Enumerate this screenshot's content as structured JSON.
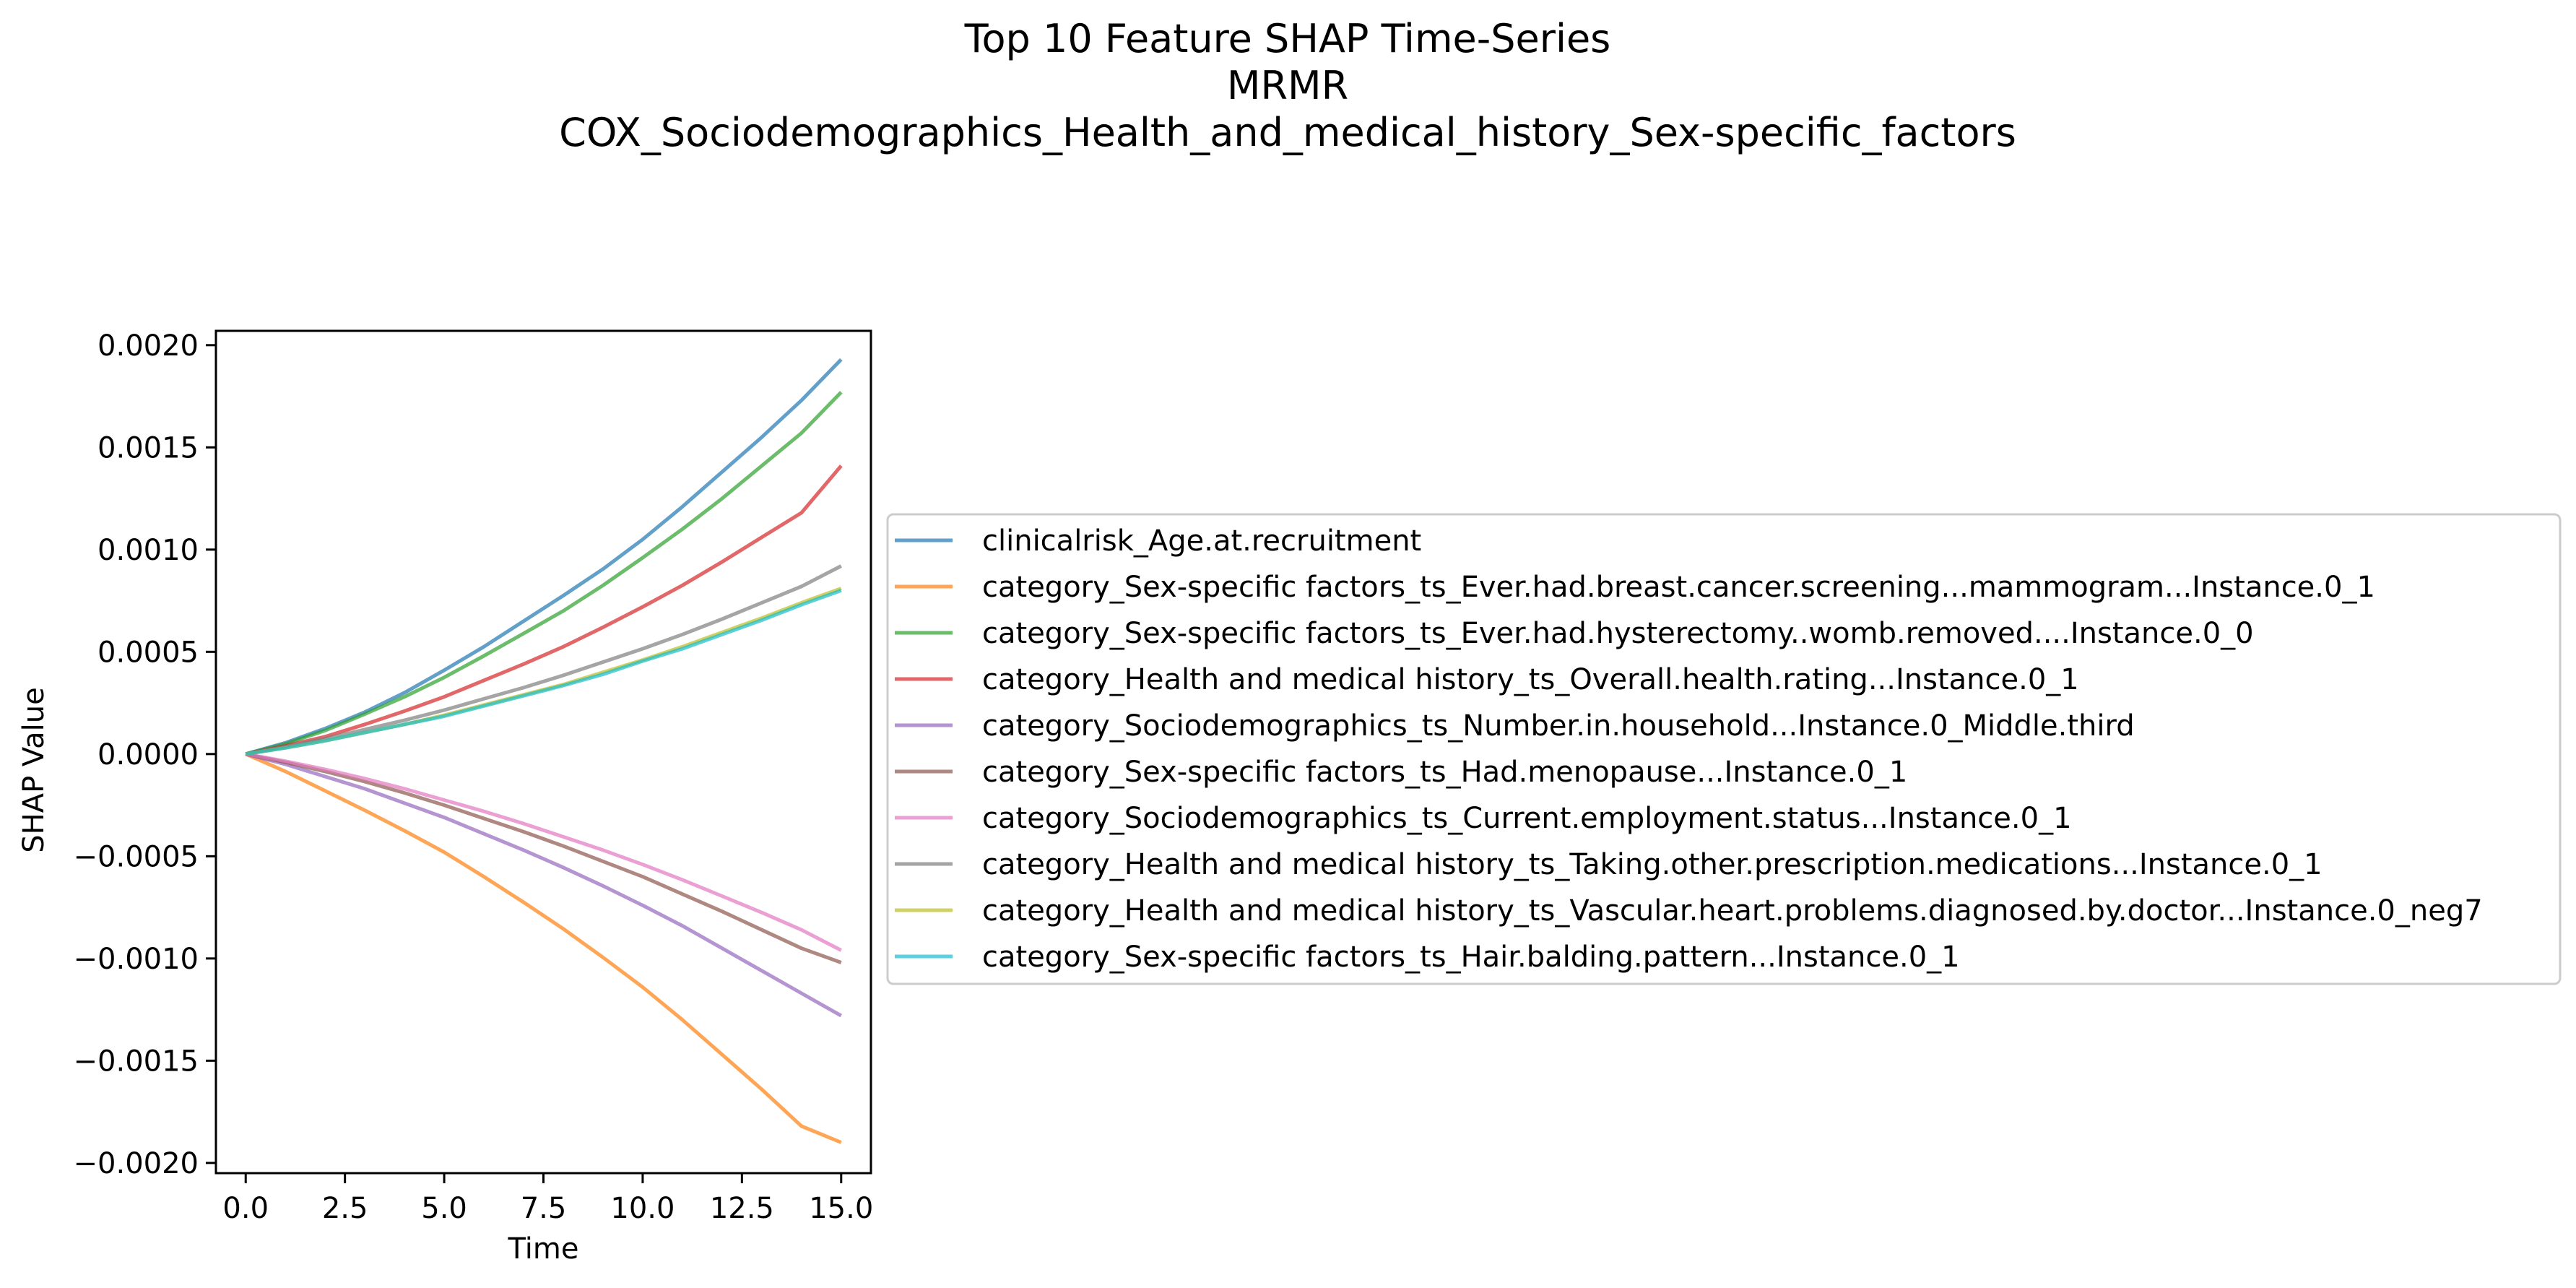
{
  "chart_data": {
    "type": "line",
    "title": [
      "Top 10 Feature SHAP Time-Series",
      "MRMR",
      "COX_Sociodemographics_Health_and_medical_history_Sex-specific_factors"
    ],
    "xlabel": "Time",
    "ylabel": "SHAP Value",
    "xlim": [
      -0.75,
      15.75
    ],
    "ylim": [
      -0.00205,
      0.00207
    ],
    "xticks": [
      0.0,
      2.5,
      5.0,
      7.5,
      10.0,
      12.5,
      15.0
    ],
    "xtick_labels": [
      "0.0",
      "2.5",
      "5.0",
      "7.5",
      "10.0",
      "12.5",
      "15.0"
    ],
    "yticks": [
      0.002,
      0.0015,
      0.001,
      0.0005,
      0.0,
      -0.0005,
      -0.001,
      -0.0015,
      -0.002
    ],
    "ytick_labels": [
      "0.0020",
      "0.0015",
      "0.0010",
      "0.0005",
      "0.0000",
      "−0.0005",
      "−0.0010",
      "−0.0015",
      "−0.0020"
    ],
    "grid": false,
    "legend_position": "right",
    "x": [
      0,
      1,
      2,
      3,
      4,
      5,
      6,
      7,
      8,
      9,
      10,
      11,
      12,
      13,
      14,
      15
    ],
    "series": [
      {
        "name": "clinicalrisk_Age.at.recruitment",
        "color": "#1f77b4",
        "values": [
          0,
          5.5e-05,
          0.000125,
          0.000205,
          0.0003,
          0.00041,
          0.000525,
          0.00065,
          0.000775,
          0.000905,
          0.00105,
          0.00121,
          0.00138,
          0.00155,
          0.00173,
          0.00193
        ]
      },
      {
        "name": "category_Sex-specific factors_ts_Ever.had.breast.cancer.screening...mammogram...Instance.0_1",
        "color": "#ff7f0e",
        "values": [
          0,
          -8.5e-05,
          -0.00018,
          -0.000275,
          -0.000375,
          -0.00048,
          -0.0006,
          -0.000725,
          -0.000855,
          -0.000995,
          -0.00114,
          -0.0013,
          -0.00147,
          -0.00164,
          -0.00182,
          -0.0019
        ]
      },
      {
        "name": "category_Sex-specific factors_ts_Ever.had.hysterectomy..womb.removed....Instance.0_0",
        "color": "#2ca02c",
        "values": [
          0,
          5e-05,
          0.000115,
          0.000195,
          0.00028,
          0.000375,
          0.00048,
          0.00059,
          0.0007,
          0.000825,
          0.00096,
          0.0011,
          0.00125,
          0.00141,
          0.00157,
          0.00177
        ]
      },
      {
        "name": "category_Health and medical history_ts_Overall.health.rating...Instance.0_1",
        "color": "#d62728",
        "values": [
          0,
          4e-05,
          8.5e-05,
          0.000145,
          0.00021,
          0.00028,
          0.00036,
          0.00044,
          0.000525,
          0.00062,
          0.00072,
          0.000825,
          0.00094,
          0.00106,
          0.00118,
          0.00141
        ]
      },
      {
        "name": "category_Sociodemographics_ts_Number.in.household...Instance.0_Middle.third",
        "color": "#9467bd",
        "values": [
          0,
          -5e-05,
          -0.00011,
          -0.00017,
          -0.00024,
          -0.00031,
          -0.00039,
          -0.00047,
          -0.000555,
          -0.000645,
          -0.00074,
          -0.00084,
          -0.00095,
          -0.00106,
          -0.00117,
          -0.00128
        ]
      },
      {
        "name": "category_Sex-specific factors_ts_Had.menopause...Instance.0_1",
        "color": "#8c564b",
        "values": [
          0,
          -4e-05,
          -8.5e-05,
          -0.000135,
          -0.00019,
          -0.00025,
          -0.000315,
          -0.00038,
          -0.00045,
          -0.000525,
          -0.0006,
          -0.000685,
          -0.00077,
          -0.00086,
          -0.00095,
          -0.00102
        ]
      },
      {
        "name": "category_Sociodemographics_ts_Current.employment.status...Instance.0_1",
        "color": "#e377c2",
        "values": [
          0,
          -3.5e-05,
          -7.5e-05,
          -0.00012,
          -0.00017,
          -0.000225,
          -0.00028,
          -0.00034,
          -0.000405,
          -0.00047,
          -0.00054,
          -0.000615,
          -0.000695,
          -0.000775,
          -0.00086,
          -0.00096
        ]
      },
      {
        "name": "category_Health and medical history_ts_Taking.other.prescription.medications...Instance.0_1",
        "color": "#7f7f7f",
        "values": [
          0,
          3.5e-05,
          7.5e-05,
          0.00012,
          0.000165,
          0.000215,
          0.00027,
          0.000325,
          0.000385,
          0.00045,
          0.000515,
          0.000585,
          0.00066,
          0.00074,
          0.00082,
          0.00092
        ]
      },
      {
        "name": "category_Health and medical history_ts_Vascular.heart.problems.diagnosed.by.doctor...Instance.0_neg7",
        "color": "#bcbd22",
        "values": [
          0,
          3e-05,
          6.5e-05,
          0.000105,
          0.000145,
          0.00019,
          0.00024,
          0.00029,
          0.00034,
          0.0004,
          0.00046,
          0.000525,
          0.000595,
          0.000665,
          0.00074,
          0.00081
        ]
      },
      {
        "name": "category_Sex-specific factors_ts_Hair.balding.pattern...Instance.0_1",
        "color": "#17becf",
        "values": [
          0,
          3e-05,
          6.5e-05,
          0.000105,
          0.000145,
          0.000185,
          0.000235,
          0.000285,
          0.000335,
          0.00039,
          0.000455,
          0.000515,
          0.000585,
          0.000655,
          0.00073,
          0.0008
        ]
      }
    ]
  }
}
